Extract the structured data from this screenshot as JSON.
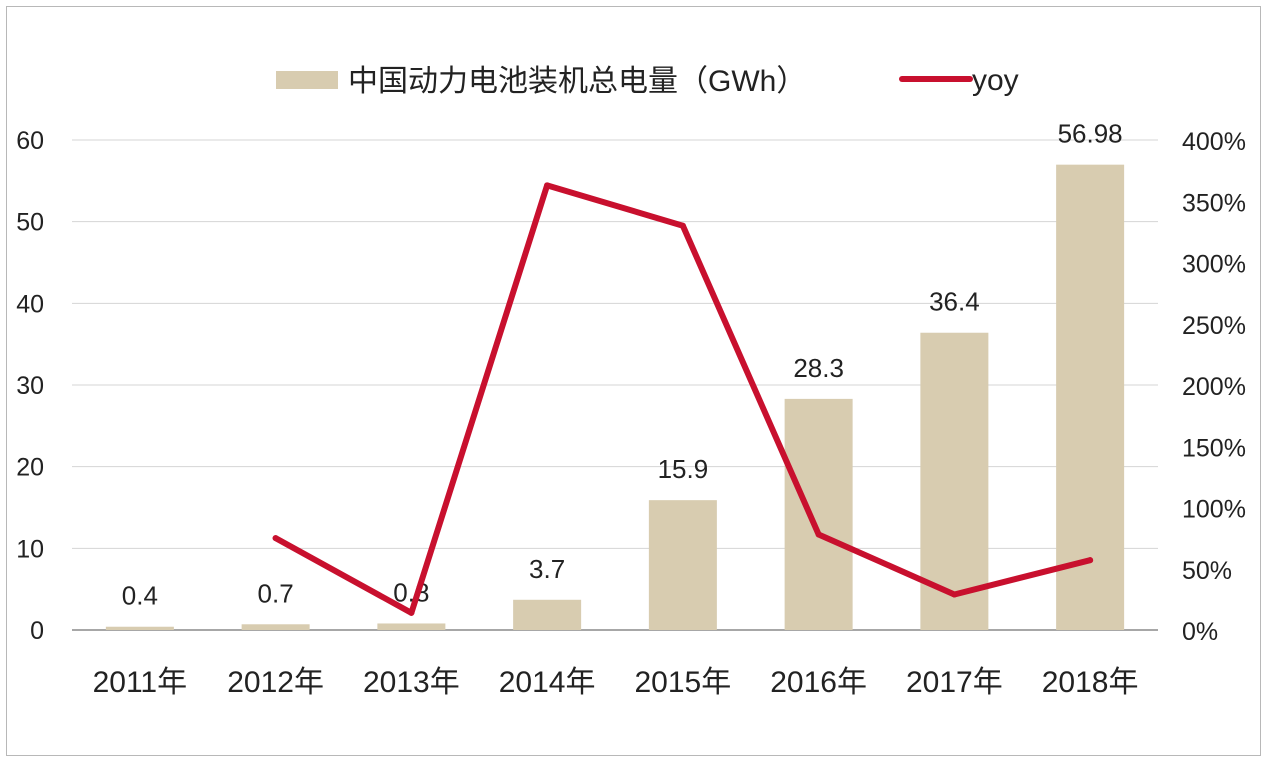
{
  "chart_data": {
    "type": "bar",
    "categories": [
      "2011年",
      "2012年",
      "2013年",
      "2014年",
      "2015年",
      "2016年",
      "2017年",
      "2018年"
    ],
    "series": [
      {
        "name": "中国动力电池装机总电量（GWh）",
        "type": "bar",
        "axis": "left",
        "color": "#d8ccb0",
        "values": [
          0.4,
          0.7,
          0.8,
          3.7,
          15.9,
          28.3,
          36.4,
          56.98
        ],
        "data_labels": [
          "0.4",
          "0.7",
          "0.8",
          "3.7",
          "15.9",
          "28.3",
          "36.4",
          "56.98"
        ]
      },
      {
        "name": "yoy",
        "type": "line",
        "axis": "right",
        "color": "#c8102e",
        "values": [
          null,
          0.75,
          0.14,
          3.63,
          3.3,
          0.78,
          0.29,
          0.57
        ]
      }
    ],
    "y_left": {
      "ylim": [
        0,
        60
      ],
      "ticks": [
        "0",
        "10",
        "20",
        "30",
        "40",
        "50",
        "60"
      ]
    },
    "y_right": {
      "ylim": [
        0,
        4
      ],
      "ticks": [
        "0%",
        "50%",
        "100%",
        "150%",
        "200%",
        "250%",
        "300%",
        "350%",
        "400%"
      ]
    },
    "legend_position": "top",
    "grid": true
  }
}
